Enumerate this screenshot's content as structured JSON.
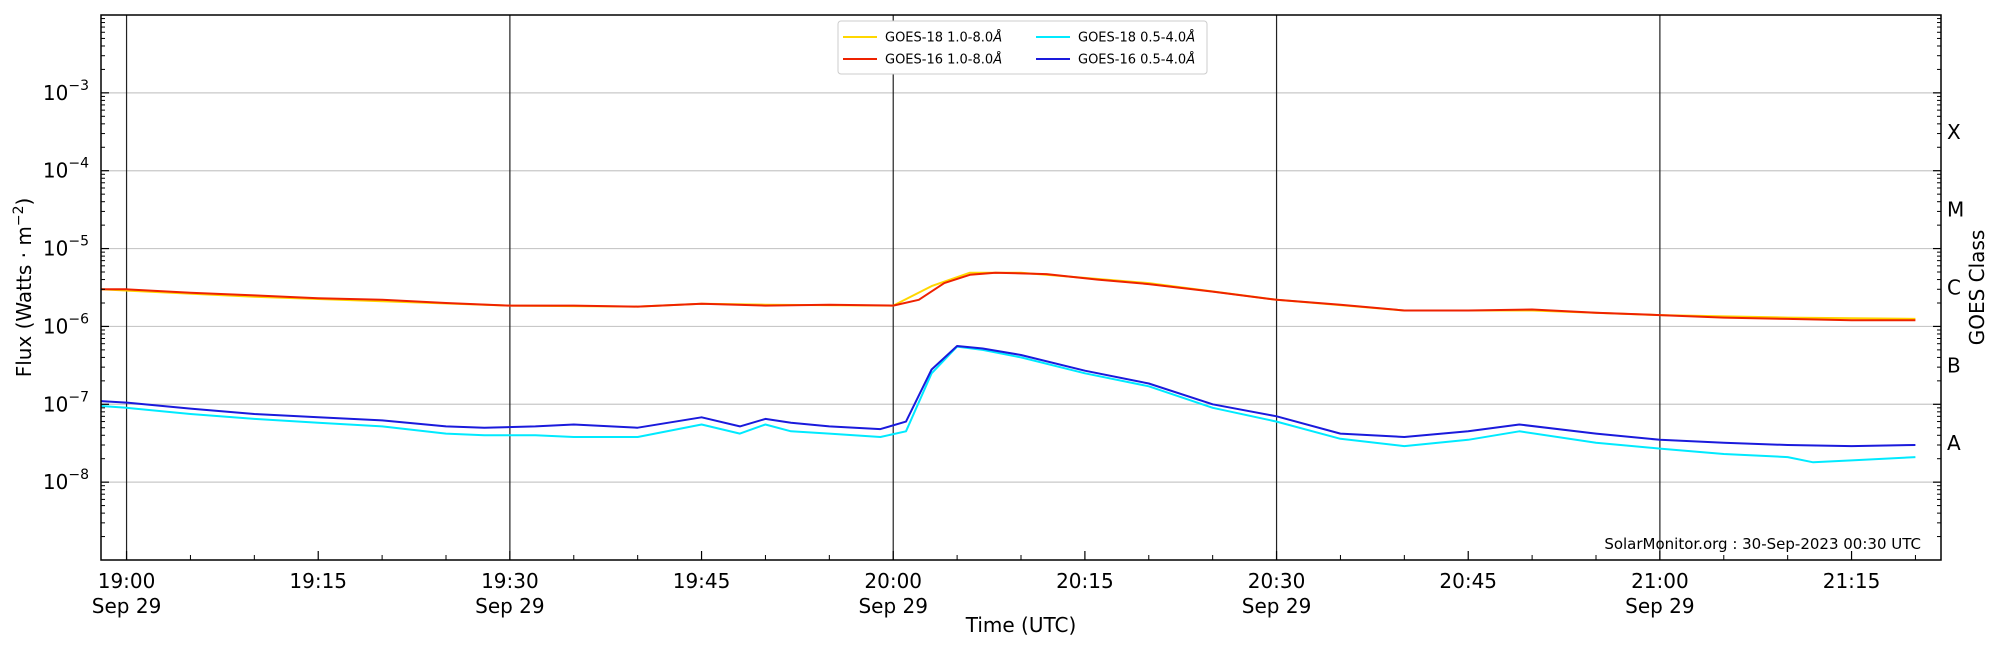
{
  "chart_data": {
    "type": "line",
    "xlabel": "Time (UTC)",
    "ylabel_main": "Flux (Watts · m",
    "ylabel_sup": "−2",
    "ylabel_close": ")",
    "ylabel_right": "GOES Class",
    "credit": "SolarMonitor.org : 30-Sep-2023 00:30 UTC",
    "x_domain": [
      "2023-09-29 18:58",
      "2023-09-29 21:22"
    ],
    "y_log_domain": [
      -9,
      -2
    ],
    "y_ticks": [
      {
        "exp": -8,
        "base": "10",
        "sup": "−8"
      },
      {
        "exp": -7,
        "base": "10",
        "sup": "−7"
      },
      {
        "exp": -6,
        "base": "10",
        "sup": "−6"
      },
      {
        "exp": -5,
        "base": "10",
        "sup": "−5"
      },
      {
        "exp": -4,
        "base": "10",
        "sup": "−4"
      },
      {
        "exp": -3,
        "base": "10",
        "sup": "−3"
      }
    ],
    "x_ticks": [
      {
        "t": "2023-09-29 19:00",
        "time": "19:00",
        "date": "Sep 29",
        "major": true
      },
      {
        "t": "2023-09-29 19:15",
        "time": "19:15",
        "date": "",
        "major": false
      },
      {
        "t": "2023-09-29 19:30",
        "time": "19:30",
        "date": "Sep 29",
        "major": true
      },
      {
        "t": "2023-09-29 19:45",
        "time": "19:45",
        "date": "",
        "major": false
      },
      {
        "t": "2023-09-29 20:00",
        "time": "20:00",
        "date": "Sep 29",
        "major": true
      },
      {
        "t": "2023-09-29 20:15",
        "time": "20:15",
        "date": "",
        "major": false
      },
      {
        "t": "2023-09-29 20:30",
        "time": "20:30",
        "date": "Sep 29",
        "major": true
      },
      {
        "t": "2023-09-29 20:45",
        "time": "20:45",
        "date": "",
        "major": false
      },
      {
        "t": "2023-09-29 21:00",
        "time": "21:00",
        "date": "Sep 29",
        "major": true
      },
      {
        "t": "2023-09-29 21:15",
        "time": "21:15",
        "date": "",
        "major": false
      }
    ],
    "goes_classes": [
      {
        "label": "A",
        "exp": -8
      },
      {
        "label": "B",
        "exp": -7
      },
      {
        "label": "C",
        "exp": -6
      },
      {
        "label": "M",
        "exp": -5
      },
      {
        "label": "X",
        "exp": -4
      }
    ],
    "grid": "horizontal at each decade; vertical lines at half-hour marks",
    "legend_position": "top-center",
    "series": [
      {
        "name": "GOES-18 1.0-8.0",
        "unit": "Å",
        "color": "#ffd700",
        "x": [
          "2023-09-29 18:58",
          "2023-09-29 19:10",
          "2023-09-29 19:20",
          "2023-09-29 19:30",
          "2023-09-29 19:40",
          "2023-09-29 19:45",
          "2023-09-29 19:50",
          "2023-09-29 20:00",
          "2023-09-29 20:03",
          "2023-09-29 20:06",
          "2023-09-29 20:10",
          "2023-09-29 20:15",
          "2023-09-29 20:20",
          "2023-09-29 20:30",
          "2023-09-29 20:40",
          "2023-09-29 20:50",
          "2023-09-29 21:00",
          "2023-09-29 21:10",
          "2023-09-29 21:20"
        ],
        "y": [
          3e-06,
          2.4e-06,
          2.1e-06,
          1.85e-06,
          1.8e-06,
          1.95e-06,
          1.9e-06,
          1.85e-06,
          3.3e-06,
          4.9e-06,
          4.9e-06,
          4.2e-06,
          3.6e-06,
          2.2e-06,
          1.6e-06,
          1.6e-06,
          1.4e-06,
          1.3e-06,
          1.25e-06
        ]
      },
      {
        "name": "GOES-16 1.0-8.0",
        "unit": "Å",
        "color": "#ee2200",
        "x": [
          "2023-09-29 18:58",
          "2023-09-29 19:00",
          "2023-09-29 19:05",
          "2023-09-29 19:10",
          "2023-09-29 19:15",
          "2023-09-29 19:20",
          "2023-09-29 19:25",
          "2023-09-29 19:30",
          "2023-09-29 19:35",
          "2023-09-29 19:40",
          "2023-09-29 19:45",
          "2023-09-29 19:50",
          "2023-09-29 19:55",
          "2023-09-29 20:00",
          "2023-09-29 20:02",
          "2023-09-29 20:04",
          "2023-09-29 20:06",
          "2023-09-29 20:08",
          "2023-09-29 20:12",
          "2023-09-29 20:16",
          "2023-09-29 20:20",
          "2023-09-29 20:25",
          "2023-09-29 20:30",
          "2023-09-29 20:35",
          "2023-09-29 20:40",
          "2023-09-29 20:45",
          "2023-09-29 20:50",
          "2023-09-29 20:55",
          "2023-09-29 21:00",
          "2023-09-29 21:05",
          "2023-09-29 21:10",
          "2023-09-29 21:15",
          "2023-09-29 21:20"
        ],
        "y": [
          3e-06,
          3e-06,
          2.7e-06,
          2.5e-06,
          2.3e-06,
          2.2e-06,
          2e-06,
          1.85e-06,
          1.85e-06,
          1.8e-06,
          1.95e-06,
          1.85e-06,
          1.9e-06,
          1.85e-06,
          2.2e-06,
          3.6e-06,
          4.6e-06,
          4.9e-06,
          4.7e-06,
          4e-06,
          3.5e-06,
          2.8e-06,
          2.2e-06,
          1.9e-06,
          1.6e-06,
          1.6e-06,
          1.65e-06,
          1.5e-06,
          1.4e-06,
          1.3e-06,
          1.25e-06,
          1.2e-06,
          1.2e-06
        ]
      },
      {
        "name": "GOES-18 0.5-4.0",
        "unit": "Å",
        "color": "#00eaff",
        "x": [
          "2023-09-29 18:58",
          "2023-09-29 19:00",
          "2023-09-29 19:05",
          "2023-09-29 19:10",
          "2023-09-29 19:15",
          "2023-09-29 19:20",
          "2023-09-29 19:25",
          "2023-09-29 19:28",
          "2023-09-29 19:32",
          "2023-09-29 19:35",
          "2023-09-29 19:40",
          "2023-09-29 19:45",
          "2023-09-29 19:48",
          "2023-09-29 19:50",
          "2023-09-29 19:52",
          "2023-09-29 19:55",
          "2023-09-29 19:59",
          "2023-09-29 20:01",
          "2023-09-29 20:03",
          "2023-09-29 20:05",
          "2023-09-29 20:07",
          "2023-09-29 20:10",
          "2023-09-29 20:15",
          "2023-09-29 20:20",
          "2023-09-29 20:25",
          "2023-09-29 20:30",
          "2023-09-29 20:35",
          "2023-09-29 20:40",
          "2023-09-29 20:45",
          "2023-09-29 20:49",
          "2023-09-29 20:55",
          "2023-09-29 21:00",
          "2023-09-29 21:05",
          "2023-09-29 21:10",
          "2023-09-29 21:12",
          "2023-09-29 21:15",
          "2023-09-29 21:20"
        ],
        "y": [
          9.5e-08,
          9e-08,
          7.5e-08,
          6.5e-08,
          5.8e-08,
          5.2e-08,
          4.2e-08,
          4e-08,
          4e-08,
          3.8e-08,
          3.8e-08,
          5.5e-08,
          4.2e-08,
          5.5e-08,
          4.5e-08,
          4.2e-08,
          3.8e-08,
          4.5e-08,
          2.5e-07,
          5.5e-07,
          5e-07,
          4e-07,
          2.5e-07,
          1.7e-07,
          9e-08,
          6e-08,
          3.6e-08,
          2.9e-08,
          3.5e-08,
          4.5e-08,
          3.2e-08,
          2.7e-08,
          2.3e-08,
          2.1e-08,
          1.8e-08,
          1.9e-08,
          2.1e-08
        ]
      },
      {
        "name": "GOES-16 0.5-4.0",
        "unit": "Å",
        "color": "#1a1adc",
        "x": [
          "2023-09-29 18:58",
          "2023-09-29 19:00",
          "2023-09-29 19:05",
          "2023-09-29 19:10",
          "2023-09-29 19:15",
          "2023-09-29 19:20",
          "2023-09-29 19:25",
          "2023-09-29 19:28",
          "2023-09-29 19:32",
          "2023-09-29 19:35",
          "2023-09-29 19:40",
          "2023-09-29 19:45",
          "2023-09-29 19:48",
          "2023-09-29 19:50",
          "2023-09-29 19:52",
          "2023-09-29 19:55",
          "2023-09-29 19:59",
          "2023-09-29 20:01",
          "2023-09-29 20:03",
          "2023-09-29 20:05",
          "2023-09-29 20:07",
          "2023-09-29 20:10",
          "2023-09-29 20:15",
          "2023-09-29 20:20",
          "2023-09-29 20:25",
          "2023-09-29 20:30",
          "2023-09-29 20:35",
          "2023-09-29 20:40",
          "2023-09-29 20:45",
          "2023-09-29 20:49",
          "2023-09-29 20:55",
          "2023-09-29 21:00",
          "2023-09-29 21:05",
          "2023-09-29 21:10",
          "2023-09-29 21:15",
          "2023-09-29 21:20"
        ],
        "y": [
          1.1e-07,
          1.05e-07,
          8.8e-08,
          7.5e-08,
          6.8e-08,
          6.2e-08,
          5.2e-08,
          5e-08,
          5.2e-08,
          5.5e-08,
          5e-08,
          6.8e-08,
          5.2e-08,
          6.5e-08,
          5.8e-08,
          5.2e-08,
          4.8e-08,
          6e-08,
          2.8e-07,
          5.6e-07,
          5.2e-07,
          4.3e-07,
          2.7e-07,
          1.85e-07,
          1e-07,
          7e-08,
          4.2e-08,
          3.8e-08,
          4.5e-08,
          5.5e-08,
          4.2e-08,
          3.5e-08,
          3.2e-08,
          3e-08,
          2.9e-08,
          3e-08
        ]
      }
    ]
  }
}
